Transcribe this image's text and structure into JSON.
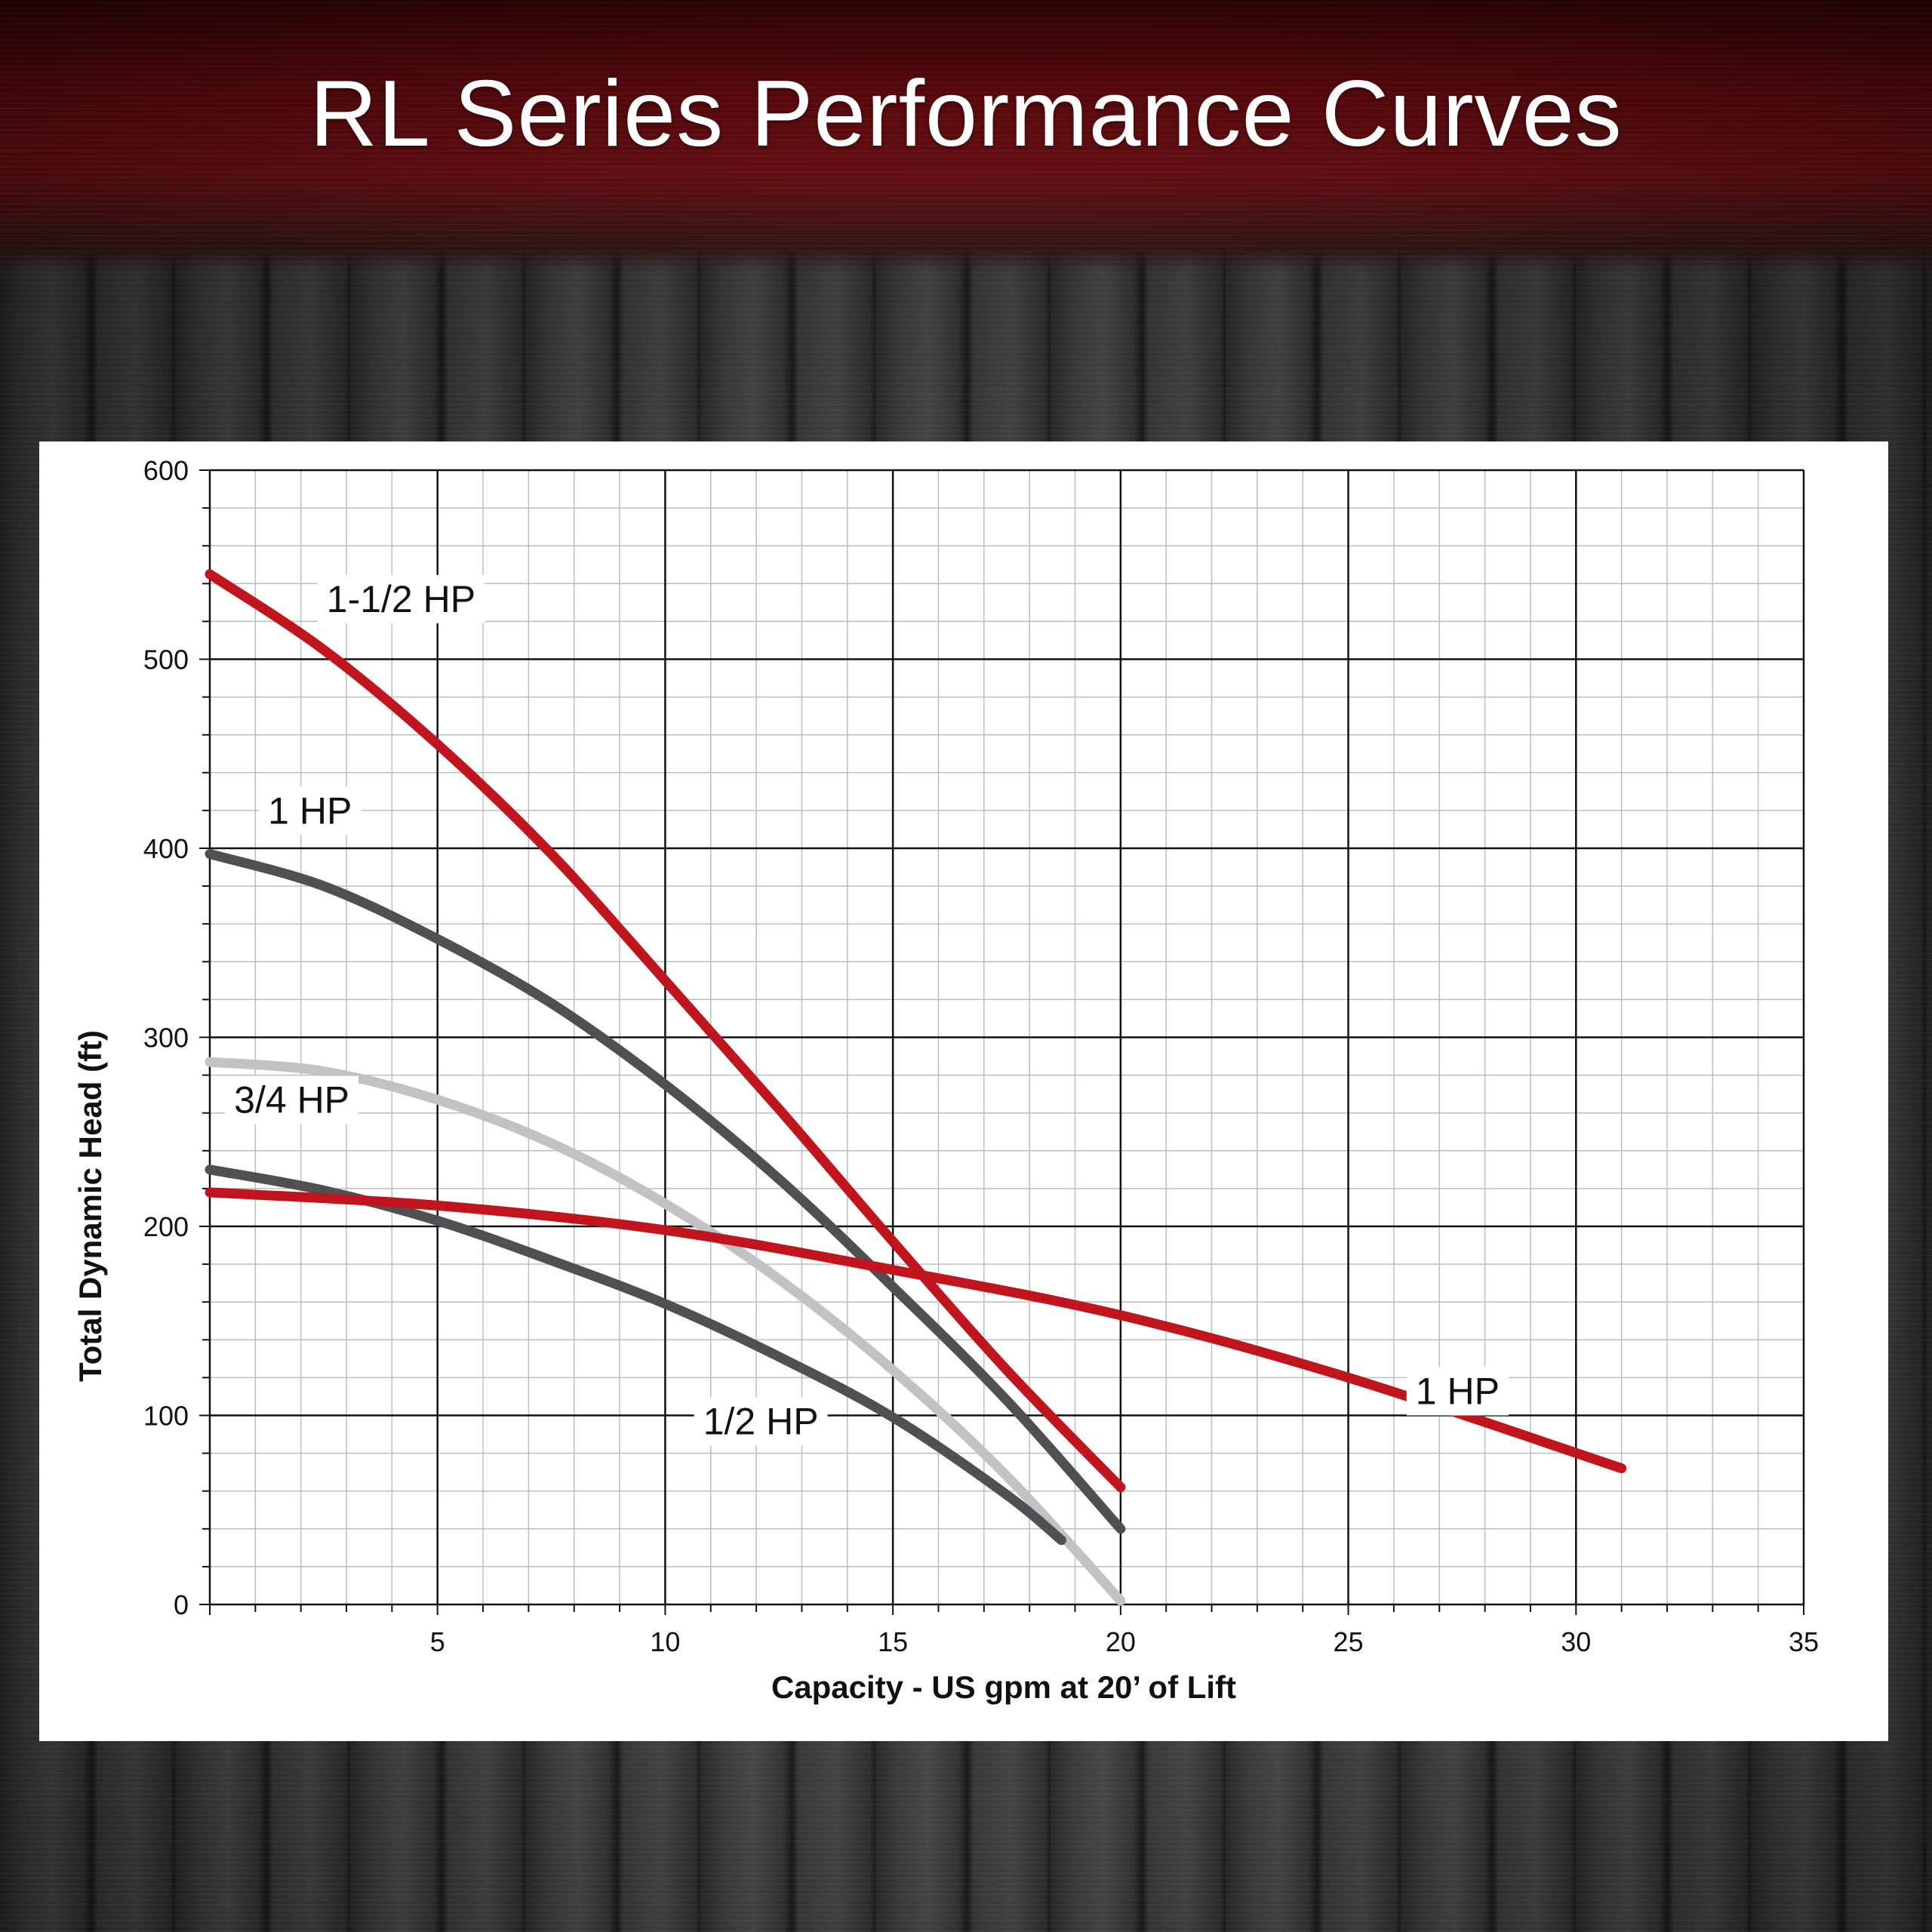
{
  "header": {
    "title": "RL Series Performance Curves"
  },
  "colors": {
    "red_curve": "#c0151d",
    "dark_curve": "#505052",
    "light_curve": "#c2c2c4",
    "grid_major": "#111111",
    "grid_minor": "#bdbdbd"
  },
  "chart_data": {
    "type": "line",
    "title": "RL Series Performance Curves",
    "xlabel": "Capacity - US gpm at 20’ of Lift",
    "ylabel": "Total Dynamic Head (ft)",
    "xlim": [
      0,
      35
    ],
    "ylim": [
      0,
      600
    ],
    "x_ticks": [
      "5",
      "10",
      "15",
      "20",
      "25",
      "30",
      "35"
    ],
    "y_ticks": [
      "0",
      "100",
      "200",
      "300",
      "400",
      "500",
      "600"
    ],
    "grid": true,
    "series": [
      {
        "name": "1-1/2 HP",
        "color": "#c0151d",
        "x": [
          0,
          2.5,
          5,
          7.5,
          10,
          12.5,
          15,
          17.5,
          20
        ],
        "y": [
          545,
          505,
          455,
          397,
          330,
          262,
          192,
          124,
          62
        ],
        "label_at": [
          4.2,
          525
        ]
      },
      {
        "name": "1 HP",
        "color": "#505052",
        "x": [
          0,
          2.5,
          5,
          7.5,
          10,
          12.5,
          15,
          17.5,
          20
        ],
        "y": [
          397,
          380,
          352,
          318,
          275,
          225,
          168,
          108,
          40
        ],
        "label_at": [
          2.2,
          413
        ]
      },
      {
        "name": "3/4 HP",
        "color": "#c2c2c4",
        "x": [
          0,
          2.5,
          5,
          7.5,
          10,
          12.5,
          15,
          17.5,
          20
        ],
        "y": [
          287,
          282,
          267,
          244,
          212,
          172,
          124,
          68,
          2
        ],
        "label_at": [
          1.8,
          260
        ]
      },
      {
        "name": "1/2 HP",
        "color": "#505052",
        "x": [
          0,
          2.5,
          5,
          7.5,
          10,
          12.5,
          15,
          17.5,
          18.7
        ],
        "y": [
          230,
          219,
          203,
          182,
          159,
          131,
          99,
          58,
          34
        ],
        "label_at": [
          12.1,
          90
        ]
      },
      {
        "name": "1 HP",
        "color": "#c0151d",
        "x": [
          0,
          5,
          10,
          15,
          20,
          25,
          31
        ],
        "y": [
          218,
          211,
          198,
          177,
          153,
          120,
          72
        ],
        "label_at": [
          27.4,
          106
        ]
      }
    ]
  }
}
